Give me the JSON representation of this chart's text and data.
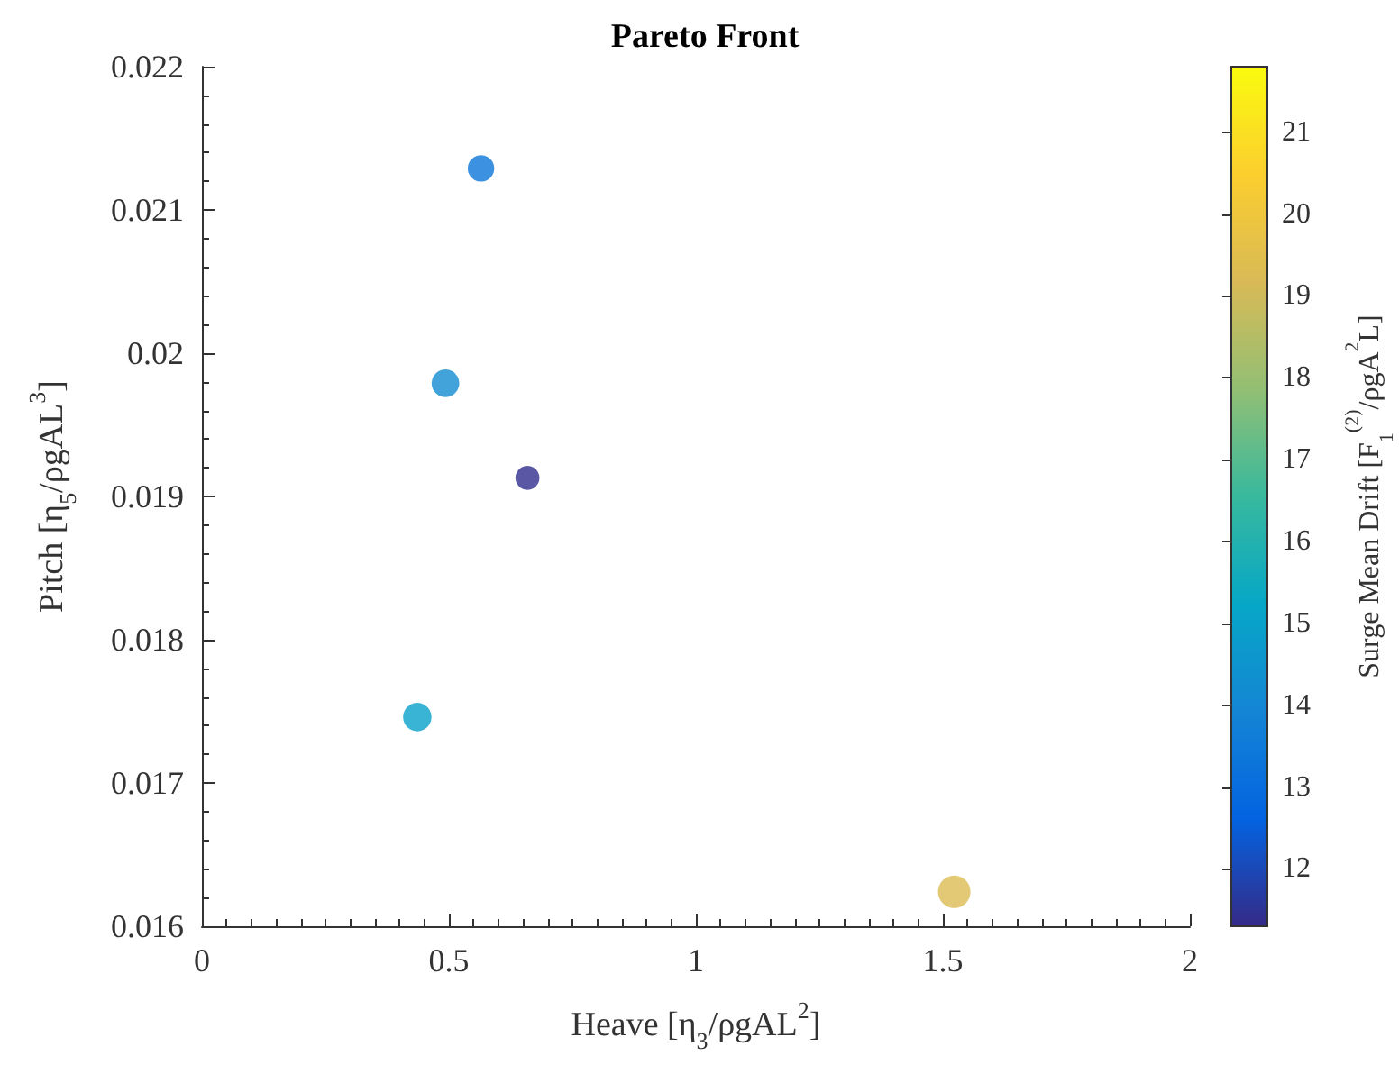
{
  "chart_data": {
    "type": "bubble",
    "title": "Pareto Front",
    "xlabel": "Heave [η$_{3}$/ρgAL$^{2}$]",
    "ylabel": "Pitch [η$_{5}$/ρgAL$^{3}$]",
    "clabel": "Surge Mean Drift [F$_{1}$$^{(2)}$/ρgA$^{2}$L]",
    "x": [
      0.565,
      0.493,
      0.659,
      0.436,
      1.523
    ],
    "values": [
      0.02129,
      0.01979,
      0.01913,
      0.01746,
      0.01624
    ],
    "sizes": [
      0.67,
      0.73,
      0.55,
      0.77,
      1
    ],
    "cvalues": [
      13.3,
      14.2,
      11.4,
      15.0,
      19.3
    ],
    "xlim": [
      0,
      2
    ],
    "xticks": [
      0,
      0.5,
      1,
      1.5,
      2
    ],
    "ylim": [
      0.016,
      0.022
    ],
    "yticks": [
      0.016,
      0.017,
      0.018,
      0.019,
      0.02,
      0.021,
      0.022
    ],
    "clim": [
      11.3,
      21.8
    ],
    "cticks": [
      12,
      13,
      14,
      15,
      16,
      17,
      18,
      19,
      20,
      21
    ]
  }
}
